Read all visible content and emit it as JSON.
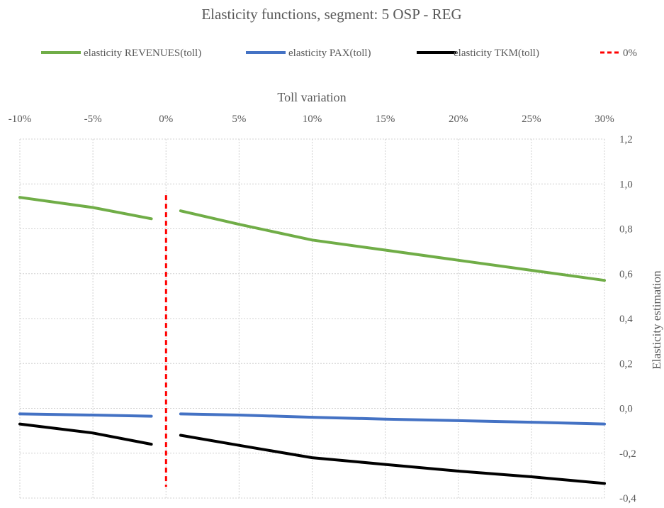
{
  "chart_data": {
    "type": "line",
    "title": "Elasticity functions, segment: 5 OSP - REG",
    "xlabel": "Toll variation",
    "ylabel": "Elasticity estimation",
    "x_axis_position": "top",
    "y_axis_position": "right",
    "x_ticks": [
      "-10%",
      "-5%",
      "0%",
      "5%",
      "10%",
      "15%",
      "20%",
      "25%",
      "30%"
    ],
    "x_tick_values": [
      -10,
      -5,
      0,
      5,
      10,
      15,
      20,
      25,
      30
    ],
    "y_ticks": [
      "1,2",
      "1,0",
      "0,8",
      "0,6",
      "0,4",
      "0,2",
      "0,0",
      "-0,2",
      "-0,4"
    ],
    "y_tick_values": [
      1.2,
      1.0,
      0.8,
      0.6,
      0.4,
      0.2,
      0.0,
      -0.2,
      -0.4
    ],
    "xlim": [
      -10,
      30
    ],
    "ylim": [
      -0.4,
      1.2
    ],
    "grid": "dotted",
    "legend": "top",
    "series": [
      {
        "name": "elasticity REVENUES(toll)",
        "color": "#70ad47",
        "style": "solid",
        "segments": [
          {
            "x": [
              -10,
              -5,
              -1
            ],
            "y": [
              0.94,
              0.895,
              0.845
            ]
          },
          {
            "x": [
              1,
              5,
              10,
              15,
              20,
              25,
              30
            ],
            "y": [
              0.88,
              0.82,
              0.75,
              0.705,
              0.66,
              0.615,
              0.57
            ]
          }
        ]
      },
      {
        "name": "elasticity PAX(toll)",
        "color": "#4472c4",
        "style": "solid",
        "segments": [
          {
            "x": [
              -10,
              -5,
              -1
            ],
            "y": [
              -0.025,
              -0.03,
              -0.035
            ]
          },
          {
            "x": [
              1,
              5,
              10,
              15,
              20,
              25,
              30
            ],
            "y": [
              -0.025,
              -0.03,
              -0.04,
              -0.048,
              -0.055,
              -0.062,
              -0.07
            ]
          }
        ]
      },
      {
        "name": "elasticity TKM(toll)",
        "color": "#000000",
        "style": "solid",
        "segments": [
          {
            "x": [
              -10,
              -5,
              -1
            ],
            "y": [
              -0.07,
              -0.11,
              -0.16
            ]
          },
          {
            "x": [
              1,
              5,
              10,
              15,
              20,
              25,
              30
            ],
            "y": [
              -0.12,
              -0.165,
              -0.22,
              -0.25,
              -0.28,
              -0.305,
              -0.335
            ]
          }
        ]
      },
      {
        "name": "0%",
        "color": "#ff0000",
        "style": "dashed",
        "segments": [
          {
            "x": [
              0,
              0
            ],
            "y": [
              0.95,
              -0.35
            ]
          }
        ]
      }
    ]
  }
}
